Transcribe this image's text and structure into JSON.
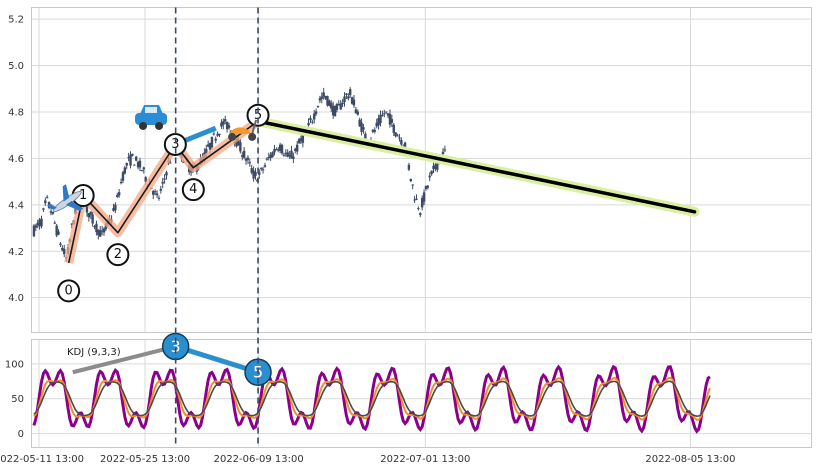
{
  "chart_data": [
    {
      "type": "candlestick",
      "panel": "price",
      "ylim": [
        3.85,
        5.25
      ],
      "y_ticks": [
        "4.0",
        "4.2",
        "4.4",
        "4.6",
        "4.8",
        "5.0",
        "5.2"
      ],
      "y_tick_values": [
        4.0,
        4.2,
        4.4,
        4.6,
        4.8,
        5.0,
        5.2
      ],
      "x_range_hours": [
        -23.7,
        2447.5
      ],
      "x_tick_labels": [
        "2022-05-11 13:00",
        "2022-05-25 13:00",
        "2022-06-09 13:00",
        "2022-07-01 13:00",
        "2022-08-05 13:00"
      ],
      "x_tick_hours": [
        0,
        336,
        696,
        1224,
        2064
      ],
      "vertical_markers_hours": [
        433,
        694
      ],
      "candle_anchor_prices": [
        [
          -16,
          4.29
        ],
        [
          8,
          4.33
        ],
        [
          24,
          4.42
        ],
        [
          40,
          4.37
        ],
        [
          56,
          4.29
        ],
        [
          72,
          4.22
        ],
        [
          88,
          4.16
        ],
        [
          104,
          4.3
        ],
        [
          120,
          4.4
        ],
        [
          136,
          4.43
        ],
        [
          152,
          4.38
        ],
        [
          168,
          4.34
        ],
        [
          184,
          4.3
        ],
        [
          200,
          4.27
        ],
        [
          216,
          4.31
        ],
        [
          232,
          4.35
        ],
        [
          248,
          4.42
        ],
        [
          264,
          4.52
        ],
        [
          280,
          4.58
        ],
        [
          296,
          4.6
        ],
        [
          312,
          4.58
        ],
        [
          328,
          4.55
        ],
        [
          344,
          4.5
        ],
        [
          360,
          4.47
        ],
        [
          376,
          4.42
        ],
        [
          392,
          4.48
        ],
        [
          408,
          4.57
        ],
        [
          424,
          4.62
        ],
        [
          440,
          4.66
        ],
        [
          456,
          4.61
        ],
        [
          472,
          4.57
        ],
        [
          488,
          4.55
        ],
        [
          504,
          4.57
        ],
        [
          520,
          4.6
        ],
        [
          536,
          4.64
        ],
        [
          552,
          4.68
        ],
        [
          568,
          4.72
        ],
        [
          584,
          4.75
        ],
        [
          600,
          4.74
        ],
        [
          616,
          4.7
        ],
        [
          632,
          4.66
        ],
        [
          648,
          4.62
        ],
        [
          664,
          4.58
        ],
        [
          680,
          4.53
        ],
        [
          696,
          4.52
        ],
        [
          712,
          4.56
        ],
        [
          728,
          4.6
        ],
        [
          744,
          4.63
        ],
        [
          760,
          4.66
        ],
        [
          776,
          4.63
        ],
        [
          792,
          4.6
        ],
        [
          808,
          4.62
        ],
        [
          824,
          4.66
        ],
        [
          840,
          4.7
        ],
        [
          856,
          4.74
        ],
        [
          872,
          4.79
        ],
        [
          888,
          4.85
        ],
        [
          904,
          4.87
        ],
        [
          920,
          4.84
        ],
        [
          936,
          4.8
        ],
        [
          952,
          4.82
        ],
        [
          968,
          4.86
        ],
        [
          984,
          4.88
        ],
        [
          1000,
          4.83
        ],
        [
          1016,
          4.76
        ],
        [
          1032,
          4.7
        ],
        [
          1048,
          4.68
        ],
        [
          1064,
          4.72
        ],
        [
          1080,
          4.76
        ],
        [
          1096,
          4.8
        ],
        [
          1112,
          4.77
        ],
        [
          1128,
          4.72
        ],
        [
          1144,
          4.69
        ],
        [
          1160,
          4.66
        ],
        [
          1176,
          4.53
        ],
        [
          1192,
          4.43
        ],
        [
          1208,
          4.38
        ],
        [
          1224,
          4.45
        ],
        [
          1240,
          4.52
        ],
        [
          1256,
          4.56
        ],
        [
          1272,
          4.6
        ],
        [
          1288,
          4.63
        ]
      ]
    },
    {
      "type": "line",
      "panel": "price-overlay",
      "name": "wave",
      "wave_labels": [
        "0",
        "1",
        "2",
        "3",
        "4",
        "5"
      ],
      "points": [
        {
          "label": "0",
          "x_hour": 94,
          "y": 4.15
        },
        {
          "label": "1",
          "x_hour": 140,
          "y": 4.44
        },
        {
          "label": "2",
          "x_hour": 250,
          "y": 4.28
        },
        {
          "label": "3",
          "x_hour": 432,
          "y": 4.66
        },
        {
          "label": "4",
          "x_hour": 489,
          "y": 4.56
        },
        {
          "label": "5",
          "x_hour": 694,
          "y": 4.76
        }
      ],
      "trend_from": {
        "x_hour": 694,
        "y": 4.76
      },
      "trend_to": {
        "x_hour": 2077,
        "y": 4.37
      },
      "blue_segment": [
        {
          "x_hour": 432,
          "y": 4.66
        },
        {
          "x_hour": 560,
          "y": 4.73
        }
      ],
      "icons": [
        "airplane-icon",
        "car-icon",
        "scooter-icon"
      ]
    },
    {
      "type": "line",
      "panel": "kdj",
      "title": "KDJ (9,3,3)",
      "ylim": [
        -20,
        135
      ],
      "y_ticks": [
        "0",
        "50",
        "100"
      ],
      "y_tick_values": [
        0,
        50,
        100
      ],
      "series_colors": {
        "K": "#f28e2b",
        "D": "#4a4a4a",
        "J": "#8b008b"
      },
      "divergence_points": [
        {
          "label": "",
          "x_hour": 107,
          "y": 88
        },
        {
          "label": "3",
          "x_hour": 433,
          "y": 125
        },
        {
          "label": "5",
          "x_hour": 694,
          "y": 88
        }
      ]
    }
  ]
}
